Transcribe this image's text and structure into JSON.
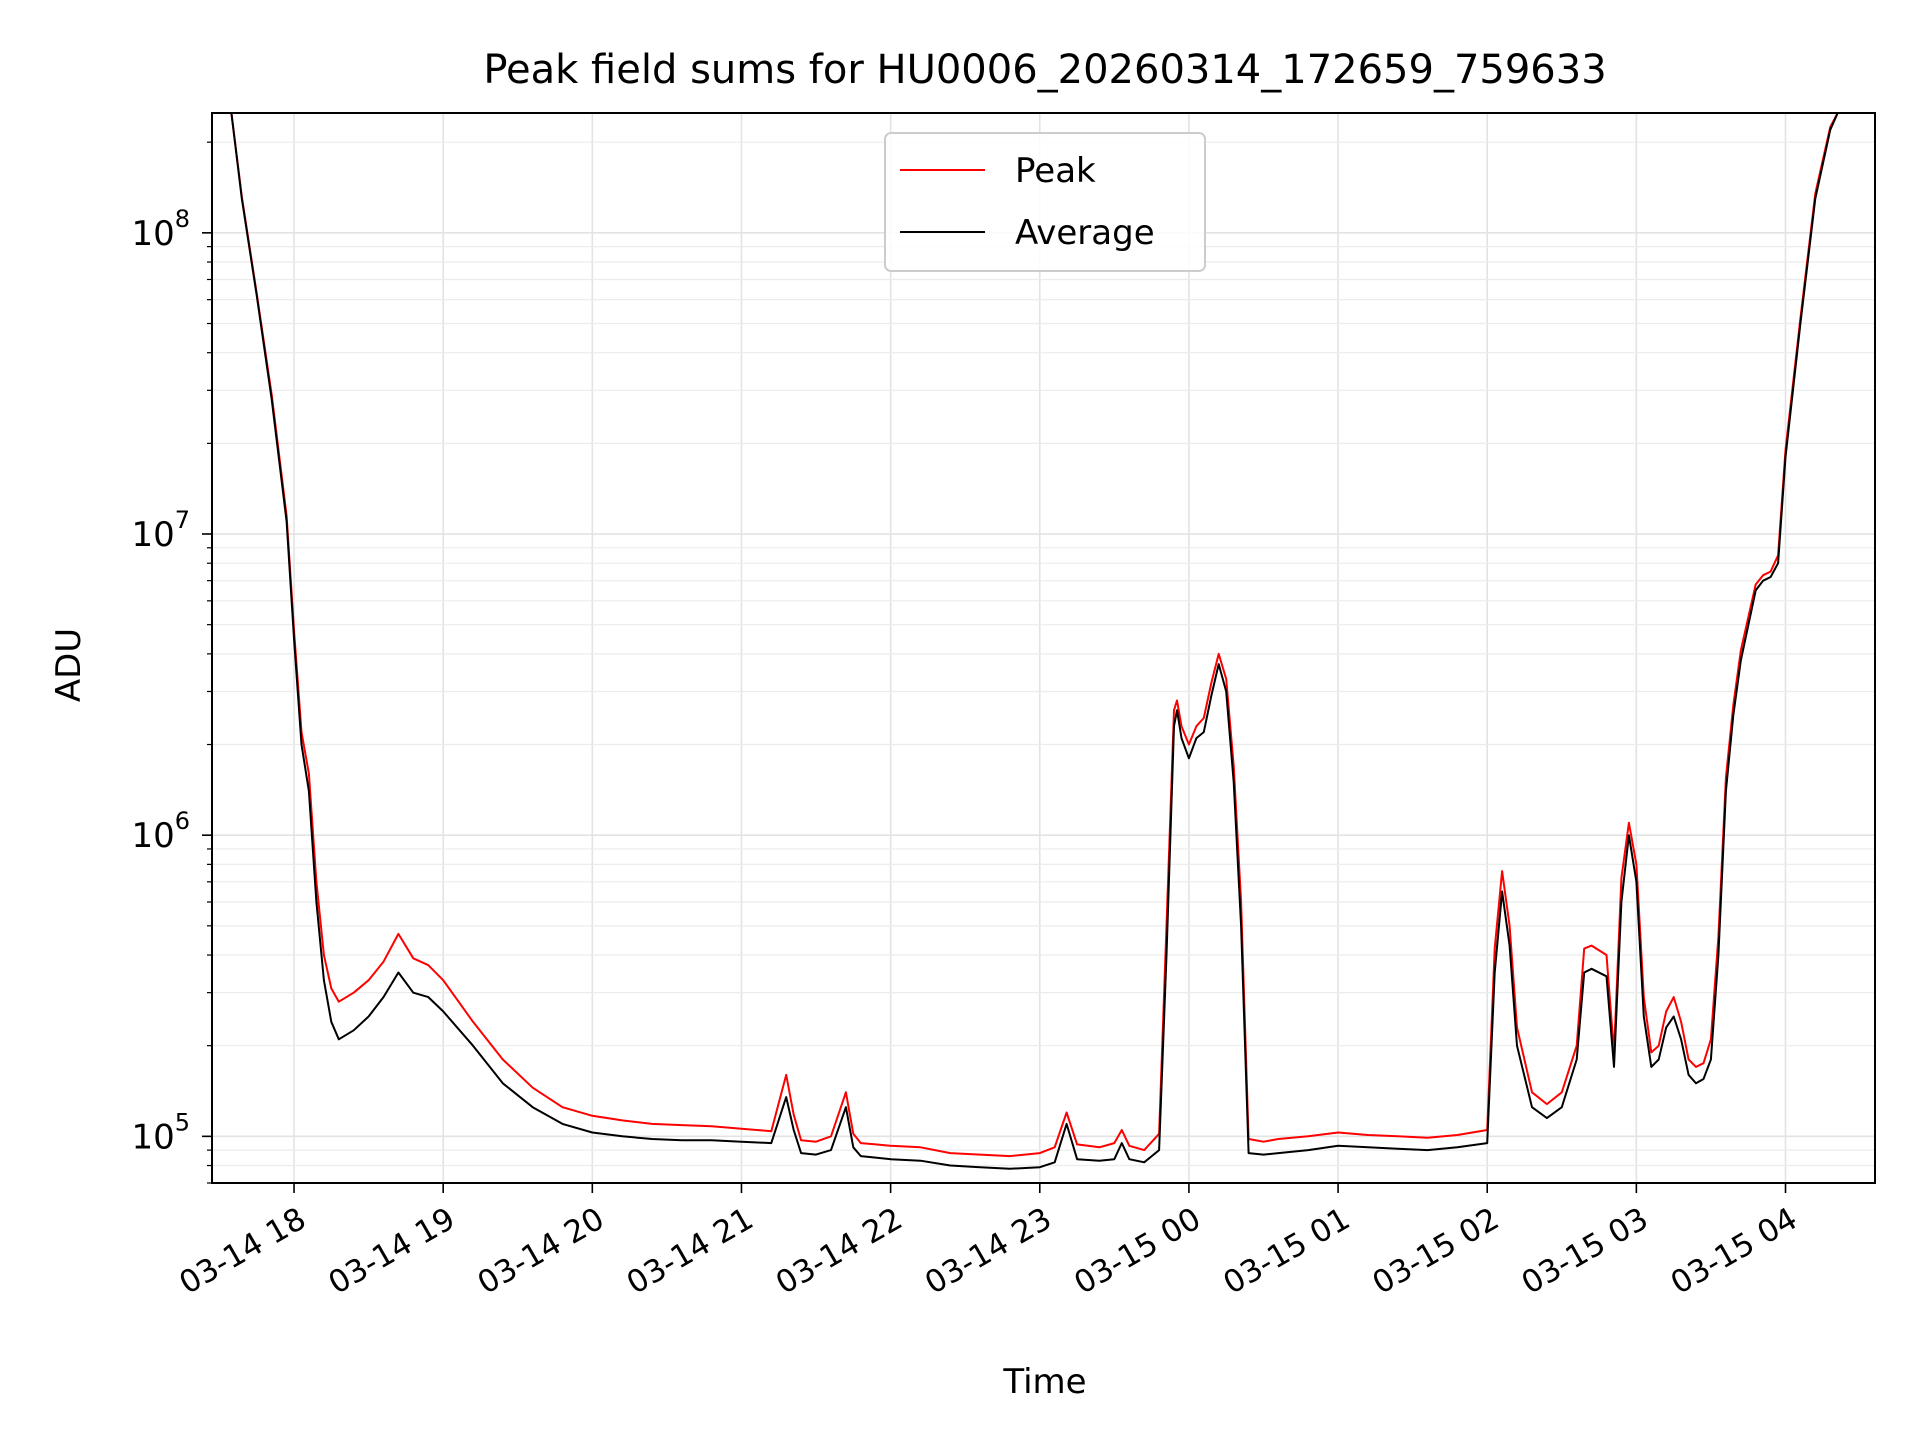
{
  "chart_data": {
    "type": "line",
    "title": "Peak field sums for HU0006_20260314_172659_759633",
    "xlabel": "Time",
    "ylabel": "ADU",
    "yscale": "log",
    "ylim": [
      70000,
      250000000
    ],
    "xlim_hours": [
      17.45,
      28.6
    ],
    "grid": true,
    "legend": {
      "location": "upper center",
      "entries": [
        {
          "label": "Peak",
          "color": "#ff0000"
        },
        {
          "label": "Average",
          "color": "#000000"
        }
      ]
    },
    "x_ticks": [
      {
        "hour": 18,
        "label": "03-14 18"
      },
      {
        "hour": 19,
        "label": "03-14 19"
      },
      {
        "hour": 20,
        "label": "03-14 20"
      },
      {
        "hour": 21,
        "label": "03-14 21"
      },
      {
        "hour": 22,
        "label": "03-14 22"
      },
      {
        "hour": 23,
        "label": "03-14 23"
      },
      {
        "hour": 24,
        "label": "03-15 00"
      },
      {
        "hour": 25,
        "label": "03-15 01"
      },
      {
        "hour": 26,
        "label": "03-15 02"
      },
      {
        "hour": 27,
        "label": "03-15 03"
      },
      {
        "hour": 28,
        "label": "03-15 04"
      }
    ],
    "y_ticks": [
      {
        "value": 100000,
        "base": "10",
        "exp": "5"
      },
      {
        "value": 1000000,
        "base": "10",
        "exp": "6"
      },
      {
        "value": 10000000,
        "base": "10",
        "exp": "7"
      },
      {
        "value": 100000000,
        "base": "10",
        "exp": "8"
      }
    ],
    "series": [
      {
        "name": "Average",
        "color": "#000000",
        "x_hours": [
          17.58,
          17.65,
          17.75,
          17.85,
          17.95,
          18.0,
          18.05,
          18.1,
          18.15,
          18.2,
          18.25,
          18.3,
          18.4,
          18.5,
          18.6,
          18.7,
          18.8,
          18.9,
          19.0,
          19.2,
          19.4,
          19.6,
          19.8,
          20.0,
          20.2,
          20.4,
          20.6,
          20.8,
          21.0,
          21.2,
          21.3,
          21.35,
          21.4,
          21.5,
          21.6,
          21.7,
          21.75,
          21.8,
          21.9,
          22.0,
          22.2,
          22.4,
          22.6,
          22.8,
          23.0,
          23.1,
          23.18,
          23.25,
          23.4,
          23.5,
          23.55,
          23.6,
          23.7,
          23.8,
          23.85,
          23.9,
          23.92,
          23.95,
          24.0,
          24.05,
          24.1,
          24.15,
          24.2,
          24.25,
          24.3,
          24.35,
          24.4,
          24.5,
          24.6,
          24.8,
          25.0,
          25.2,
          25.4,
          25.6,
          25.8,
          26.0,
          26.05,
          26.1,
          26.15,
          26.2,
          26.3,
          26.4,
          26.5,
          26.6,
          26.65,
          26.7,
          26.8,
          26.85,
          26.9,
          26.95,
          27.0,
          27.05,
          27.1,
          27.15,
          27.2,
          27.25,
          27.3,
          27.35,
          27.4,
          27.45,
          27.5,
          27.55,
          27.6,
          27.65,
          27.7,
          27.8,
          27.85,
          27.9,
          27.95,
          28.0,
          28.1,
          28.2,
          28.3,
          28.35
        ],
        "values": [
          250000000,
          130000000,
          62000000,
          28000000,
          11000000,
          4500000,
          2000000,
          1400000,
          600000,
          330000,
          240000,
          210000,
          225000,
          250000,
          290000,
          350000,
          300000,
          290000,
          260000,
          200000,
          150000,
          125000,
          110000,
          103000,
          100000,
          98000,
          97000,
          97000,
          96000,
          95000,
          135000,
          105000,
          88000,
          87000,
          90000,
          125000,
          92000,
          86000,
          85000,
          84000,
          83000,
          80000,
          79000,
          78000,
          79000,
          82000,
          110000,
          84000,
          83000,
          84000,
          95000,
          84000,
          82000,
          90000,
          400000,
          2300000,
          2600000,
          2100000,
          1800000,
          2100000,
          2200000,
          2900000,
          3700000,
          3000000,
          1500000,
          500000,
          88000,
          87000,
          88000,
          90000,
          93000,
          92000,
          91000,
          90000,
          92000,
          95000,
          350000,
          650000,
          430000,
          200000,
          125000,
          115000,
          125000,
          180000,
          350000,
          360000,
          340000,
          170000,
          600000,
          1000000,
          700000,
          250000,
          170000,
          180000,
          230000,
          250000,
          210000,
          160000,
          150000,
          155000,
          180000,
          400000,
          1400000,
          2500000,
          3800000,
          6500000,
          7000000,
          7200000,
          8000000,
          18000000,
          50000000,
          130000000,
          220000000,
          250000000
        ]
      },
      {
        "name": "Peak",
        "color": "#ff0000",
        "x_hours": [
          17.58,
          17.65,
          17.75,
          17.85,
          17.95,
          18.0,
          18.05,
          18.1,
          18.15,
          18.2,
          18.25,
          18.3,
          18.4,
          18.5,
          18.6,
          18.7,
          18.8,
          18.9,
          19.0,
          19.2,
          19.4,
          19.6,
          19.8,
          20.0,
          20.2,
          20.4,
          20.6,
          20.8,
          21.0,
          21.2,
          21.3,
          21.35,
          21.4,
          21.5,
          21.6,
          21.7,
          21.75,
          21.8,
          21.9,
          22.0,
          22.2,
          22.4,
          22.6,
          22.8,
          23.0,
          23.1,
          23.18,
          23.25,
          23.4,
          23.5,
          23.55,
          23.6,
          23.7,
          23.8,
          23.85,
          23.9,
          23.92,
          23.95,
          24.0,
          24.05,
          24.1,
          24.15,
          24.2,
          24.25,
          24.3,
          24.35,
          24.4,
          24.5,
          24.6,
          24.8,
          25.0,
          25.2,
          25.4,
          25.6,
          25.8,
          26.0,
          26.05,
          26.1,
          26.15,
          26.2,
          26.3,
          26.4,
          26.5,
          26.6,
          26.65,
          26.7,
          26.8,
          26.85,
          26.9,
          26.95,
          27.0,
          27.05,
          27.1,
          27.15,
          27.2,
          27.25,
          27.3,
          27.35,
          27.4,
          27.45,
          27.5,
          27.55,
          27.6,
          27.65,
          27.7,
          27.8,
          27.85,
          27.9,
          27.95,
          28.0,
          28.1,
          28.2,
          28.3,
          28.35
        ],
        "values": [
          250000000,
          132000000,
          63000000,
          29000000,
          11500000,
          4800000,
          2200000,
          1600000,
          700000,
          400000,
          310000,
          280000,
          300000,
          330000,
          380000,
          470000,
          390000,
          370000,
          330000,
          240000,
          180000,
          145000,
          125000,
          117000,
          113000,
          110000,
          109000,
          108000,
          106000,
          104000,
          160000,
          118000,
          97000,
          96000,
          100000,
          140000,
          102000,
          95000,
          94000,
          93000,
          92000,
          88000,
          87000,
          86000,
          88000,
          92000,
          120000,
          94000,
          92000,
          95000,
          105000,
          93000,
          90000,
          102000,
          500000,
          2600000,
          2800000,
          2300000,
          2000000,
          2300000,
          2450000,
          3200000,
          4000000,
          3300000,
          1700000,
          600000,
          98000,
          96000,
          98000,
          100000,
          103000,
          101000,
          100000,
          99000,
          101000,
          105000,
          420000,
          760000,
          500000,
          230000,
          140000,
          128000,
          140000,
          200000,
          420000,
          430000,
          400000,
          190000,
          720000,
          1100000,
          800000,
          290000,
          190000,
          200000,
          260000,
          290000,
          240000,
          180000,
          170000,
          175000,
          210000,
          460000,
          1550000,
          2700000,
          4100000,
          6800000,
          7300000,
          7500000,
          8500000,
          19000000,
          52000000,
          135000000,
          225000000,
          250000000
        ]
      }
    ]
  }
}
